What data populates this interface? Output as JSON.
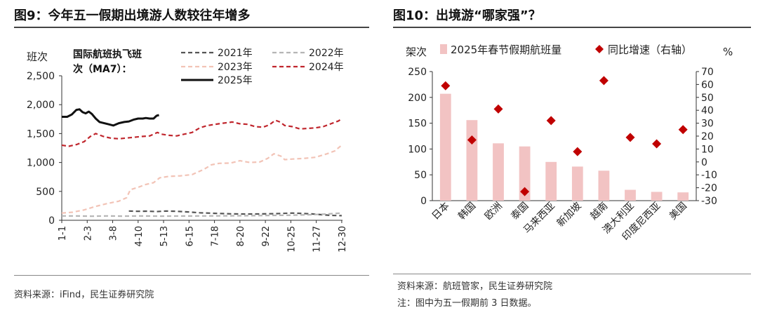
{
  "left": {
    "title": "图9：今年五一假期出境游人数较往年增多",
    "source": "资料来源：iFind，民生证券研究院",
    "unit": "班次",
    "annotation_line1": "国际航班执飞班",
    "annotation_line2": "次（MA7）：",
    "colors": {
      "2021": "#555555",
      "2022": "#b5b5b5",
      "2023": "#f2c3b6",
      "2024": "#c0262d",
      "2025": "#111111"
    }
  },
  "right": {
    "title": "图10：出境游“哪家强”？",
    "source": "资料来源：航班管家，民生证券研究院",
    "note": "注：图中为五一假期前 3 日数据。",
    "left_unit": "架次",
    "right_unit": "%",
    "colors": {
      "bar": "#f2c3c3",
      "marker": "#c00000"
    }
  },
  "chart_data": [
    {
      "type": "line",
      "ylabel": "班次",
      "ylim": [
        0,
        2500
      ],
      "yticks": [
        0,
        500,
        1000,
        1500,
        2000,
        2500
      ],
      "ytick_labels": [
        "0",
        "500",
        "1,000",
        "1,500",
        "2,000",
        "2,500"
      ],
      "x_domain": [
        1,
        365
      ],
      "x_ticks": [
        {
          "label": "1-1",
          "day": 1
        },
        {
          "label": "2-3",
          "day": 34
        },
        {
          "label": "3-8",
          "day": 67
        },
        {
          "label": "4-10",
          "day": 100
        },
        {
          "label": "5-13",
          "day": 133
        },
        {
          "label": "6-15",
          "day": 166
        },
        {
          "label": "7-18",
          "day": 199
        },
        {
          "label": "8-20",
          "day": 232
        },
        {
          "label": "9-22",
          "day": 265
        },
        {
          "label": "10-25",
          "day": 298
        },
        {
          "label": "11-27",
          "day": 331
        },
        {
          "label": "12-30",
          "day": 364
        }
      ],
      "legend_placement": "top",
      "grid": false,
      "series": [
        {
          "name": "2021年",
          "style": "dashed",
          "points": [
            [
              88,
              160
            ],
            [
              100,
              155
            ],
            [
              112,
              158
            ],
            [
              124,
              150
            ],
            [
              136,
              160
            ],
            [
              150,
              155
            ],
            [
              165,
              145
            ],
            [
              180,
              130
            ],
            [
              200,
              120
            ],
            [
              220,
              112
            ],
            [
              240,
              108
            ],
            [
              260,
              110
            ],
            [
              280,
              115
            ],
            [
              300,
              125
            ],
            [
              310,
              120
            ],
            [
              325,
              110
            ],
            [
              340,
              95
            ],
            [
              350,
              85
            ],
            [
              364,
              80
            ]
          ]
        },
        {
          "name": "2022年",
          "style": "dashed",
          "points": [
            [
              1,
              75
            ],
            [
              20,
              75
            ],
            [
              40,
              70
            ],
            [
              60,
              75
            ],
            [
              80,
              72
            ],
            [
              100,
              75
            ],
            [
              130,
              72
            ],
            [
              160,
              74
            ],
            [
              190,
              75
            ],
            [
              220,
              78
            ],
            [
              250,
              80
            ],
            [
              280,
              85
            ],
            [
              300,
              88
            ],
            [
              320,
              95
            ],
            [
              340,
              105
            ],
            [
              364,
              125
            ]
          ]
        },
        {
          "name": "2023年",
          "style": "dashed",
          "points": [
            [
              1,
              125
            ],
            [
              15,
              140
            ],
            [
              30,
              180
            ],
            [
              45,
              240
            ],
            [
              60,
              290
            ],
            [
              75,
              330
            ],
            [
              85,
              390
            ],
            [
              90,
              530
            ],
            [
              100,
              570
            ],
            [
              110,
              620
            ],
            [
              120,
              650
            ],
            [
              128,
              735
            ],
            [
              140,
              760
            ],
            [
              155,
              770
            ],
            [
              170,
              790
            ],
            [
              185,
              880
            ],
            [
              195,
              960
            ],
            [
              205,
              985
            ],
            [
              220,
              990
            ],
            [
              232,
              1030
            ],
            [
              245,
              1000
            ],
            [
              258,
              1010
            ],
            [
              268,
              1070
            ],
            [
              276,
              1150
            ],
            [
              285,
              1110
            ],
            [
              290,
              1050
            ],
            [
              300,
              1060
            ],
            [
              315,
              1070
            ],
            [
              330,
              1090
            ],
            [
              345,
              1150
            ],
            [
              355,
              1200
            ],
            [
              364,
              1300
            ]
          ]
        },
        {
          "name": "2024年",
          "style": "dashed",
          "points": [
            [
              1,
              1300
            ],
            [
              10,
              1280
            ],
            [
              20,
              1310
            ],
            [
              30,
              1360
            ],
            [
              38,
              1450
            ],
            [
              45,
              1500
            ],
            [
              55,
              1450
            ],
            [
              65,
              1420
            ],
            [
              75,
              1410
            ],
            [
              90,
              1430
            ],
            [
              105,
              1450
            ],
            [
              115,
              1460
            ],
            [
              125,
              1520
            ],
            [
              130,
              1490
            ],
            [
              140,
              1470
            ],
            [
              150,
              1460
            ],
            [
              160,
              1490
            ],
            [
              170,
              1520
            ],
            [
              180,
              1600
            ],
            [
              190,
              1640
            ],
            [
              200,
              1660
            ],
            [
              210,
              1680
            ],
            [
              222,
              1700
            ],
            [
              232,
              1670
            ],
            [
              242,
              1660
            ],
            [
              252,
              1620
            ],
            [
              262,
              1610
            ],
            [
              270,
              1650
            ],
            [
              278,
              1730
            ],
            [
              284,
              1700
            ],
            [
              290,
              1640
            ],
            [
              300,
              1620
            ],
            [
              310,
              1580
            ],
            [
              320,
              1590
            ],
            [
              330,
              1600
            ],
            [
              340,
              1620
            ],
            [
              350,
              1670
            ],
            [
              360,
              1720
            ],
            [
              364,
              1760
            ]
          ]
        },
        {
          "name": "2025年",
          "style": "solid",
          "points": [
            [
              1,
              1790
            ],
            [
              8,
              1790
            ],
            [
              14,
              1830
            ],
            [
              20,
              1910
            ],
            [
              24,
              1920
            ],
            [
              28,
              1870
            ],
            [
              32,
              1850
            ],
            [
              36,
              1880
            ],
            [
              40,
              1840
            ],
            [
              45,
              1760
            ],
            [
              50,
              1700
            ],
            [
              56,
              1680
            ],
            [
              62,
              1660
            ],
            [
              68,
              1640
            ],
            [
              75,
              1680
            ],
            [
              82,
              1700
            ],
            [
              88,
              1710
            ],
            [
              94,
              1740
            ],
            [
              100,
              1760
            ],
            [
              106,
              1760
            ],
            [
              110,
              1770
            ],
            [
              115,
              1760
            ],
            [
              120,
              1760
            ],
            [
              124,
              1810
            ],
            [
              127,
              1820
            ]
          ]
        }
      ]
    },
    {
      "type": "bar",
      "categories": [
        "日本",
        "韩国",
        "欧洲",
        "泰国",
        "马来西亚",
        "新加坡",
        "越南",
        "澳大利亚",
        "印度尼西亚",
        "美国"
      ],
      "ylim_left": [
        0,
        250
      ],
      "yticks_left": [
        0,
        50,
        100,
        150,
        200,
        250
      ],
      "ylim_right": [
        -30,
        70
      ],
      "yticks_right": [
        -30,
        -20,
        -10,
        0,
        10,
        20,
        30,
        40,
        50,
        60,
        70
      ],
      "legend_placement": "top",
      "grid": false,
      "series": [
        {
          "name": "2025年春节假期航班量",
          "kind": "bar",
          "axis": "left",
          "values": [
            207,
            156,
            111,
            105,
            75,
            66,
            58,
            21,
            17,
            16
          ]
        },
        {
          "name": "同比增速（右轴）",
          "kind": "marker",
          "axis": "right",
          "values": [
            59,
            17,
            41,
            -23,
            32,
            8,
            63,
            19,
            14,
            25
          ]
        }
      ]
    }
  ]
}
